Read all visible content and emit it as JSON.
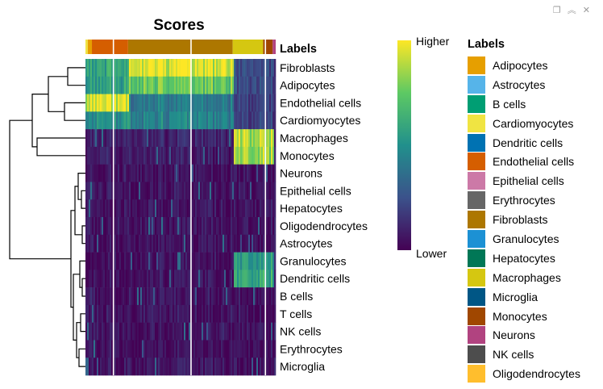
{
  "window_icons": [
    "copy-icon",
    "chevron-up-icon",
    "close-icon"
  ],
  "chart_data": {
    "type": "heatmap",
    "title": "Scores",
    "annotation_label": "Labels",
    "rows": [
      "Fibroblasts",
      "Adipocytes",
      "Endothelial cells",
      "Cardiomyocytes",
      "Macrophages",
      "Monocytes",
      "Neurons",
      "Epithelial cells",
      "Hepatocytes",
      "Oligodendrocytes",
      "Astrocytes",
      "Granulocytes",
      "Dendritic cells",
      "B cells",
      "T cells",
      "NK cells",
      "Erythrocytes",
      "Microglia"
    ],
    "column_annotation_groups": [
      {
        "label": "Cardiomyocytes",
        "fraction": 0.012
      },
      {
        "label": "Adipocytes",
        "fraction": 0.022
      },
      {
        "label": "Endothelial cells",
        "fraction": 0.19
      },
      {
        "label": "Fibroblasts",
        "fraction": 0.55
      },
      {
        "label": "Macrophages",
        "fraction": 0.16
      },
      {
        "label": "Monocytes",
        "fraction": 0.05
      },
      {
        "label": "Neurons",
        "fraction": 0.016
      }
    ],
    "block_intensity": [
      {
        "row": "Fibroblasts",
        "Endothelial cells": 0.6,
        "Fibroblasts": 0.95,
        "Macrophages": 0.25
      },
      {
        "row": "Adipocytes",
        "Endothelial cells": 0.55,
        "Fibroblasts": 0.75,
        "Macrophages": 0.25
      },
      {
        "row": "Endothelial cells",
        "Endothelial cells": 0.95,
        "Fibroblasts": 0.4,
        "Macrophages": 0.2
      },
      {
        "row": "Cardiomyocytes",
        "Endothelial cells": 0.5,
        "Fibroblasts": 0.45,
        "Macrophages": 0.2
      },
      {
        "row": "Macrophages",
        "Endothelial cells": 0.1,
        "Fibroblasts": 0.1,
        "Macrophages": 0.9
      },
      {
        "row": "Monocytes",
        "Endothelial cells": 0.08,
        "Fibroblasts": 0.08,
        "Macrophages": 0.85
      },
      {
        "row": "Granulocytes",
        "Endothelial cells": 0.05,
        "Fibroblasts": 0.05,
        "Macrophages": 0.55
      },
      {
        "row": "Dendritic cells",
        "Endothelial cells": 0.05,
        "Fibroblasts": 0.05,
        "Macrophages": 0.6
      }
    ],
    "color_scale": {
      "name": "viridis",
      "high_label": "Higher",
      "low_label": "Lower",
      "stops": [
        "#440154",
        "#3b528b",
        "#21908c",
        "#5dc963",
        "#fde725"
      ]
    },
    "legend": {
      "title": "Labels",
      "items": [
        {
          "label": "Adipocytes",
          "color": "#E69F00"
        },
        {
          "label": "Astrocytes",
          "color": "#56B4E9"
        },
        {
          "label": "B cells",
          "color": "#009E73"
        },
        {
          "label": "Cardiomyocytes",
          "color": "#F0E442"
        },
        {
          "label": "Dendritic cells",
          "color": "#0072B2"
        },
        {
          "label": "Endothelial cells",
          "color": "#D55E00"
        },
        {
          "label": "Epithelial cells",
          "color": "#CC79A7"
        },
        {
          "label": "Erythrocytes",
          "color": "#666666"
        },
        {
          "label": "Fibroblasts",
          "color": "#AD7700"
        },
        {
          "label": "Granulocytes",
          "color": "#1C91D4"
        },
        {
          "label": "Hepatocytes",
          "color": "#007756"
        },
        {
          "label": "Macrophages",
          "color": "#D5C711"
        },
        {
          "label": "Microglia",
          "color": "#005685"
        },
        {
          "label": "Monocytes",
          "color": "#A04700"
        },
        {
          "label": "Neurons",
          "color": "#B14380"
        },
        {
          "label": "NK cells",
          "color": "#4D4D4D"
        },
        {
          "label": "Oligodendrocytes",
          "color": "#FFBE2D"
        }
      ]
    }
  }
}
